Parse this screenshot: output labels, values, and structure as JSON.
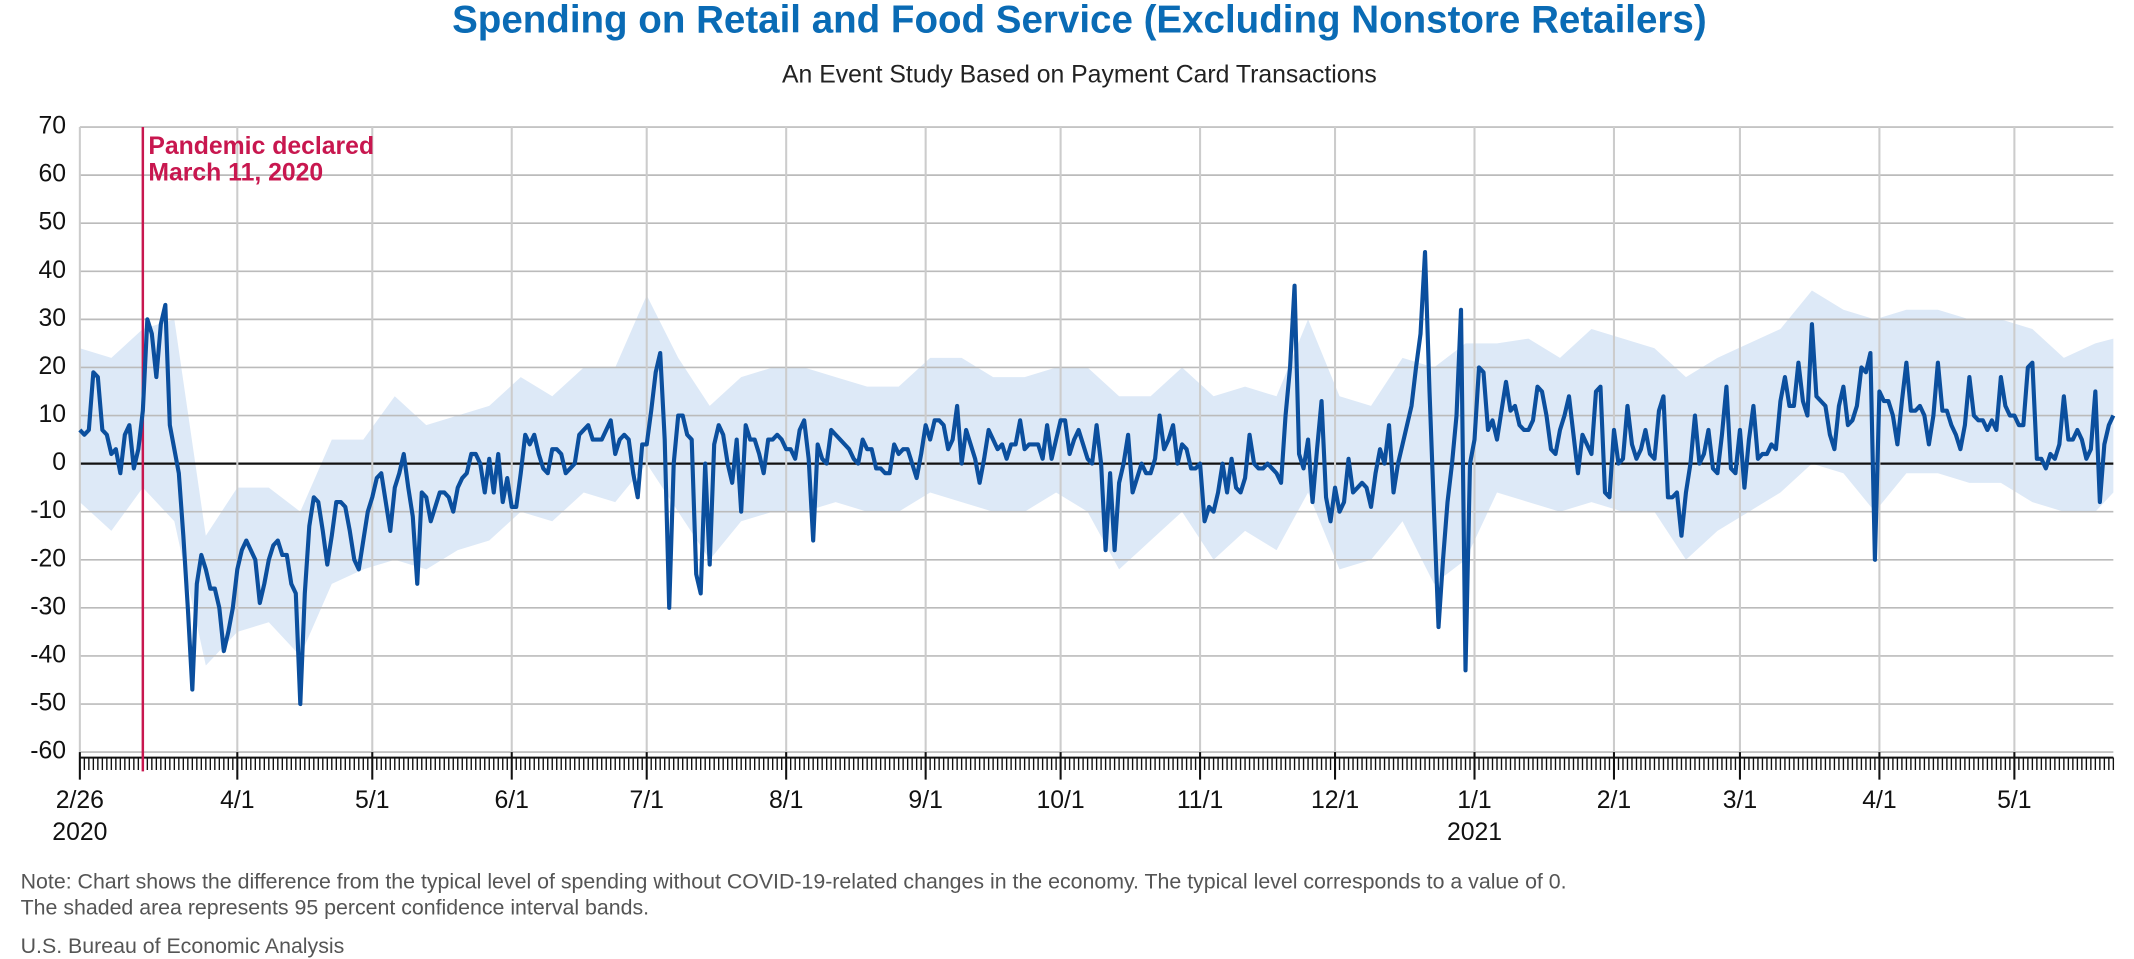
{
  "chart_data": {
    "type": "line",
    "title": "Spending on Retail and Food Service (Excluding Nonstore Retailers)",
    "subtitle": "An Event Study Based on Payment Card Transactions",
    "x": [
      0,
      1,
      2,
      3,
      4,
      5,
      6,
      7,
      8,
      9,
      10,
      11,
      12,
      13,
      14,
      15,
      16,
      17,
      18,
      19,
      20,
      21,
      22,
      23,
      24,
      25,
      26,
      27,
      28,
      29,
      30,
      31,
      32,
      33,
      34,
      35,
      36,
      37,
      38,
      39,
      40,
      41,
      42,
      43,
      44,
      45,
      46,
      47,
      48,
      49,
      50,
      51,
      52,
      53,
      54,
      55,
      56,
      57,
      58,
      59,
      60,
      61,
      62,
      63,
      64,
      65,
      66,
      67,
      68,
      69,
      70,
      71,
      72,
      73,
      74,
      75,
      76,
      77,
      78,
      79,
      80,
      81,
      82,
      83,
      84,
      85,
      86,
      87,
      88,
      89,
      90,
      91,
      92,
      93,
      94,
      95,
      96,
      97,
      98,
      99,
      100,
      101,
      102,
      103,
      104,
      105,
      106,
      107,
      108,
      109,
      110,
      111,
      112,
      113,
      114,
      115,
      116,
      117,
      118,
      119,
      120,
      121,
      122,
      123,
      124,
      125,
      126,
      127,
      128,
      129,
      130,
      131,
      132,
      133,
      134,
      135,
      136,
      137,
      138,
      139,
      140,
      141,
      142,
      143,
      144,
      145,
      146,
      147,
      148,
      149,
      150,
      151,
      152,
      153,
      154,
      155,
      156,
      157,
      158,
      159,
      160,
      161,
      162,
      163,
      164,
      165,
      166,
      167,
      168,
      169,
      170,
      171,
      172,
      173,
      174,
      175,
      176,
      177,
      178,
      179,
      180,
      181,
      182,
      183,
      184,
      185,
      186,
      187,
      188,
      189,
      190,
      191,
      192,
      193,
      194,
      195,
      196,
      197,
      198,
      199,
      200,
      201,
      202,
      203,
      204,
      205,
      206,
      207,
      208,
      209,
      210,
      211,
      212,
      213,
      214,
      215,
      216,
      217,
      218,
      219,
      220,
      221,
      222,
      223,
      224,
      225,
      226,
      227,
      228,
      229,
      230,
      231,
      232,
      233,
      234,
      235,
      236,
      237,
      238,
      239,
      240,
      241,
      242,
      243,
      244,
      245,
      246,
      247,
      248,
      249,
      250,
      251,
      252,
      253,
      254,
      255,
      256,
      257,
      258,
      259,
      260,
      261,
      262,
      263,
      264,
      265,
      266,
      267,
      268,
      269,
      270,
      271,
      272,
      273,
      274,
      275,
      276,
      277,
      278,
      279,
      280,
      281,
      282,
      283,
      284,
      285,
      286,
      287,
      288,
      289,
      290,
      291,
      292,
      293,
      294,
      295,
      296,
      297,
      298,
      299,
      300,
      301,
      302,
      303,
      304,
      305,
      306,
      307,
      308,
      309,
      310,
      311,
      312,
      313,
      314,
      315,
      316,
      317,
      318,
      319,
      320,
      321,
      322,
      323,
      324,
      325,
      326,
      327,
      328,
      329,
      330,
      331,
      332,
      333,
      334,
      335,
      336,
      337,
      338,
      339,
      340,
      341,
      342,
      343,
      344,
      345,
      346,
      347,
      348,
      349,
      350,
      351,
      352,
      353,
      354,
      355,
      356,
      357,
      358,
      359,
      360,
      361,
      362,
      363,
      364,
      365,
      366,
      367,
      368,
      369,
      370,
      371,
      372,
      373,
      374,
      375,
      376,
      377,
      378,
      379,
      380,
      381,
      382,
      383,
      384,
      385,
      386,
      387,
      388,
      389,
      390,
      391,
      392,
      393,
      394,
      395,
      396,
      397,
      398,
      399,
      400,
      401,
      402,
      403,
      404,
      405,
      406,
      407,
      408,
      409,
      410,
      411,
      412,
      413,
      414,
      415,
      416,
      417,
      418,
      419,
      420,
      421,
      422,
      423,
      424,
      425,
      426,
      427,
      428,
      429,
      430,
      431,
      432,
      433,
      434,
      435,
      436,
      437,
      438,
      439,
      440,
      441,
      442,
      443,
      444,
      445,
      446,
      447,
      448,
      449,
      450,
      451,
      452
    ],
    "series": [
      {
        "color": "#0b4f9e",
        "values": [
          7,
          6,
          7,
          19,
          18,
          7,
          6,
          2,
          3,
          -2,
          6,
          8,
          -1,
          3,
          11,
          30,
          27,
          18,
          29,
          33,
          8,
          3,
          -2,
          -15,
          -30,
          -47,
          -25,
          -19,
          -22,
          -26,
          -26,
          -30,
          -39,
          -35,
          -30,
          -22,
          -18,
          -16,
          -18,
          -20,
          -29,
          -25,
          -20,
          -17,
          -16,
          -19,
          -19,
          -25,
          -27,
          -50,
          -27,
          -13,
          -7,
          -8,
          -14,
          -21,
          -15,
          -8,
          -8,
          -9,
          -14,
          -20,
          -22,
          -16,
          -10,
          -7,
          -3,
          -2,
          -8,
          -14,
          -5,
          -2,
          2,
          -5,
          -11,
          -25,
          -6,
          -7,
          -12,
          -9,
          -6,
          -6,
          -7,
          -10,
          -5,
          -3,
          -2,
          2,
          2,
          0,
          -6,
          1,
          -6,
          2,
          -8,
          -3,
          -9,
          -9,
          -2,
          6,
          4,
          6,
          2,
          -1,
          -2,
          3,
          3,
          2,
          -2,
          -1,
          0,
          6,
          7,
          8,
          5,
          5,
          5,
          7,
          9,
          2,
          5,
          6,
          5,
          -2,
          -7,
          4,
          4,
          11,
          19,
          23,
          5,
          -30,
          0,
          10,
          10,
          6,
          5,
          -23,
          -27,
          0,
          -21,
          4,
          8,
          6,
          0,
          -4,
          5,
          -10,
          8,
          5,
          5,
          2,
          -2,
          5,
          5,
          6,
          5,
          3,
          3,
          1,
          7,
          9,
          1,
          -16,
          4,
          1,
          0,
          7,
          6,
          5,
          4,
          3,
          1,
          0,
          5,
          3,
          3,
          -1,
          -1,
          -2,
          -2,
          4,
          2,
          3,
          3,
          0,
          -3,
          2,
          8,
          5,
          9,
          9,
          8,
          3,
          5,
          12,
          0,
          7,
          4,
          1,
          -4,
          1,
          7,
          5,
          3,
          4,
          1,
          4,
          4,
          9,
          3,
          4,
          4,
          4,
          1,
          8,
          1,
          5,
          9,
          9,
          2,
          5,
          7,
          4,
          1,
          0,
          8,
          0,
          -18,
          -2,
          -18,
          -4,
          0,
          6,
          -6,
          -3,
          0,
          -2,
          -2,
          1,
          10,
          3,
          5,
          8,
          0,
          4,
          3,
          -1,
          -1,
          0,
          -12,
          -9,
          -10,
          -6,
          0,
          -6,
          1,
          -5,
          -6,
          -3,
          6,
          0,
          -1,
          -1,
          0,
          -1,
          -2,
          -4,
          10,
          20,
          37,
          2,
          -1,
          5,
          -8,
          3,
          13,
          -7,
          -12,
          -5,
          -10,
          -8,
          1,
          -6,
          -5,
          -4,
          -5,
          -9,
          -2,
          3,
          0,
          8,
          -6,
          0,
          4,
          8,
          12,
          20,
          27,
          44,
          15,
          -10,
          -34,
          -20,
          -8,
          0,
          10,
          32,
          -43,
          0,
          5,
          20,
          19,
          7,
          9,
          5,
          11,
          17,
          11,
          12,
          8,
          7,
          7,
          9,
          16,
          15,
          10,
          3,
          2,
          7,
          10,
          14,
          6,
          -2,
          6,
          4,
          2,
          15,
          16,
          -6,
          -7,
          7,
          0,
          1,
          12,
          4,
          1,
          3,
          7,
          2,
          1,
          11,
          14,
          -7,
          -7,
          -6,
          -15,
          -6,
          0,
          10,
          0,
          2,
          7,
          -1,
          -2,
          6,
          16,
          -1,
          -2,
          7,
          -5,
          5,
          12,
          1,
          2,
          2,
          4,
          3,
          13,
          18,
          12,
          12,
          21,
          13,
          10,
          29,
          14,
          13,
          12,
          6,
          3,
          12,
          16,
          8,
          9,
          12,
          20,
          19,
          23,
          -20,
          15,
          13,
          13,
          10,
          4,
          13,
          21,
          11,
          11,
          12,
          10,
          4,
          10,
          21,
          11,
          11,
          8,
          6,
          3,
          8,
          18,
          10,
          9,
          9,
          7,
          9,
          7,
          18,
          12,
          10,
          10,
          8,
          8,
          20,
          21,
          1,
          1,
          -1,
          2,
          1,
          4,
          14,
          5,
          5,
          7,
          5,
          1,
          3,
          15,
          -8,
          4,
          8,
          10
        ]
      }
    ],
    "band": {
      "color": "#dde9f7",
      "x": [
        0,
        7,
        14,
        21,
        28,
        35,
        42,
        49,
        56,
        63,
        70,
        77,
        84,
        91,
        98,
        105,
        112,
        119,
        126,
        133,
        140,
        147,
        154,
        161,
        168,
        175,
        182,
        189,
        196,
        203,
        210,
        217,
        224,
        231,
        238,
        245,
        252,
        259,
        266,
        273,
        280,
        287,
        294,
        301,
        308,
        315,
        322,
        329,
        336,
        343,
        350,
        357,
        364,
        371,
        378,
        385,
        392,
        399,
        406,
        413,
        420,
        427,
        434,
        441,
        448,
        452
      ],
      "lower": [
        -8,
        -14,
        -5,
        -12,
        -42,
        -35,
        -33,
        -40,
        -25,
        -22,
        -20,
        -22,
        -18,
        -16,
        -10,
        -12,
        -6,
        -8,
        0,
        -10,
        -20,
        -12,
        -10,
        -10,
        -8,
        -10,
        -10,
        -6,
        -8,
        -10,
        -10,
        -6,
        -10,
        -22,
        -16,
        -10,
        -20,
        -14,
        -18,
        -6,
        -22,
        -20,
        -12,
        -25,
        -20,
        -6,
        -8,
        -10,
        -8,
        -10,
        -10,
        -20,
        -14,
        -10,
        -6,
        0,
        -2,
        -10,
        -2,
        -2,
        -4,
        -4,
        -8,
        -10,
        -10,
        -6
      ],
      "upper": [
        24,
        22,
        28,
        30,
        -15,
        -5,
        -5,
        -10,
        5,
        5,
        14,
        8,
        10,
        12,
        18,
        14,
        20,
        20,
        35,
        22,
        12,
        18,
        20,
        20,
        18,
        16,
        16,
        22,
        22,
        18,
        18,
        20,
        20,
        14,
        14,
        20,
        14,
        16,
        14,
        30,
        14,
        12,
        22,
        20,
        25,
        25,
        26,
        22,
        28,
        26,
        24,
        18,
        22,
        25,
        28,
        36,
        32,
        30,
        32,
        32,
        30,
        30,
        28,
        22,
        25,
        26
      ]
    },
    "xlim": [
      0,
      452
    ],
    "ylim": [
      -60,
      70
    ],
    "yticks": [
      -60,
      -50,
      -40,
      -30,
      -20,
      -10,
      0,
      10,
      20,
      30,
      40,
      50,
      60,
      70
    ],
    "xticks": [
      {
        "value": 0,
        "label": "2/26"
      },
      {
        "value": 35,
        "label": "4/1"
      },
      {
        "value": 65,
        "label": "5/1"
      },
      {
        "value": 96,
        "label": "6/1"
      },
      {
        "value": 126,
        "label": "7/1"
      },
      {
        "value": 157,
        "label": "8/1"
      },
      {
        "value": 188,
        "label": "9/1"
      },
      {
        "value": 218,
        "label": "10/1"
      },
      {
        "value": 249,
        "label": "11/1"
      },
      {
        "value": 279,
        "label": "12/1"
      },
      {
        "value": 310,
        "label": "1/1"
      },
      {
        "value": 341,
        "label": "2/1"
      },
      {
        "value": 369,
        "label": "3/1"
      },
      {
        "value": 400,
        "label": "4/1"
      },
      {
        "value": 430,
        "label": "5/1"
      }
    ],
    "year_labels": [
      {
        "value": 0,
        "label": "2020"
      },
      {
        "value": 310,
        "label": "2021"
      }
    ],
    "grid": true,
    "annotation": {
      "x": 14,
      "color": "#c8174f",
      "lines": [
        "Pandemic declared",
        "March 11, 2020"
      ]
    },
    "notes": [
      "Note: Chart shows the difference from the typical level of spending without COVID-19-related changes in the economy. The typical level corresponds to a value of 0.",
      "The shaded area represents 95 percent confidence interval bands."
    ],
    "source": "U.S. Bureau of Economic Analysis"
  }
}
